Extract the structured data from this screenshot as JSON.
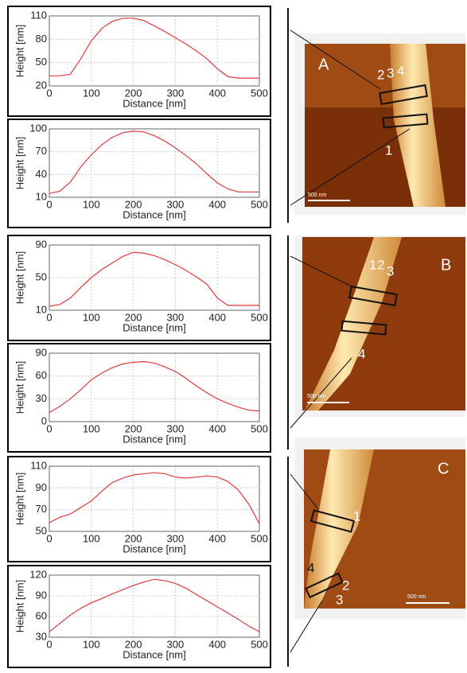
{
  "chart_data": [
    {
      "type": "line",
      "x_label": "Distance [nm]",
      "y_label": "Height [nm]",
      "xlim": [
        0,
        500
      ],
      "ylim": [
        20,
        110
      ],
      "xticks": [
        0,
        100,
        200,
        300,
        400,
        500
      ],
      "yticks": [
        20,
        50,
        80,
        110
      ],
      "grid": true,
      "x": [
        0,
        25,
        50,
        75,
        100,
        125,
        150,
        175,
        200,
        225,
        250,
        275,
        300,
        325,
        350,
        375,
        400,
        425,
        450,
        475,
        500
      ],
      "series": [
        {
          "color": "#e03a3a",
          "values": [
            33,
            33,
            35,
            55,
            78,
            94,
            103,
            107,
            107,
            104,
            97,
            90,
            82,
            74,
            65,
            55,
            42,
            32,
            30,
            30,
            30
          ]
        }
      ]
    },
    {
      "type": "line",
      "x_label": "Distance [nm]",
      "y_label": "Height [nm]",
      "xlim": [
        0,
        500
      ],
      "ylim": [
        10,
        100
      ],
      "xticks": [
        0,
        100,
        200,
        300,
        400,
        500
      ],
      "yticks": [
        10,
        40,
        70,
        100
      ],
      "grid": true,
      "x": [
        0,
        25,
        50,
        75,
        100,
        125,
        150,
        175,
        200,
        225,
        250,
        275,
        300,
        325,
        350,
        375,
        400,
        425,
        450,
        475,
        500
      ],
      "series": [
        {
          "color": "#e03a3a",
          "values": [
            15,
            18,
            30,
            50,
            66,
            79,
            89,
            95,
            97,
            96,
            91,
            84,
            75,
            65,
            54,
            41,
            29,
            21,
            17,
            17,
            17
          ]
        }
      ]
    },
    {
      "type": "line",
      "x_label": "Distance [nm]",
      "y_label": "Height [nm]",
      "xlim": [
        0,
        500
      ],
      "ylim": [
        10,
        90
      ],
      "xticks": [
        0,
        100,
        200,
        300,
        400,
        500
      ],
      "yticks": [
        10,
        50,
        90
      ],
      "grid": true,
      "x": [
        0,
        25,
        50,
        75,
        100,
        125,
        150,
        175,
        200,
        225,
        250,
        275,
        300,
        325,
        350,
        375,
        400,
        425,
        450,
        475,
        500
      ],
      "series": [
        {
          "color": "#e03a3a",
          "values": [
            15,
            17,
            25,
            38,
            50,
            60,
            68,
            76,
            81,
            80,
            77,
            72,
            66,
            59,
            51,
            42,
            25,
            16,
            16,
            16,
            16
          ]
        }
      ]
    },
    {
      "type": "line",
      "x_label": "Distance [nm]",
      "y_label": "Height [nm]",
      "xlim": [
        0,
        500
      ],
      "ylim": [
        0,
        90
      ],
      "xticks": [
        0,
        100,
        200,
        300,
        400,
        500
      ],
      "yticks": [
        0,
        30,
        60,
        90
      ],
      "grid": true,
      "x": [
        0,
        25,
        50,
        75,
        100,
        125,
        150,
        175,
        200,
        225,
        250,
        275,
        300,
        325,
        350,
        375,
        400,
        425,
        450,
        475,
        500
      ],
      "series": [
        {
          "color": "#e03a3a",
          "values": [
            12,
            20,
            30,
            42,
            55,
            64,
            71,
            76,
            78,
            79,
            77,
            72,
            66,
            57,
            47,
            38,
            30,
            24,
            19,
            15,
            14
          ]
        }
      ]
    },
    {
      "type": "line",
      "x_label": "Distance [nm]",
      "y_label": "Height [nm]",
      "xlim": [
        0,
        500
      ],
      "ylim": [
        50,
        110
      ],
      "xticks": [
        0,
        100,
        200,
        300,
        400,
        500
      ],
      "yticks": [
        50,
        70,
        90,
        110
      ],
      "grid": true,
      "x": [
        0,
        25,
        50,
        75,
        100,
        125,
        150,
        175,
        200,
        225,
        250,
        275,
        300,
        325,
        350,
        375,
        400,
        425,
        450,
        475,
        500
      ],
      "series": [
        {
          "color": "#e03a3a",
          "values": [
            58,
            63,
            66,
            72,
            78,
            87,
            95,
            99,
            102,
            103,
            104,
            103,
            100,
            99,
            100,
            101,
            100,
            96,
            88,
            75,
            57
          ]
        }
      ]
    },
    {
      "type": "line",
      "x_label": "Distance [nm]",
      "y_label": "Height [nm]",
      "xlim": [
        0,
        500
      ],
      "ylim": [
        30,
        120
      ],
      "xticks": [
        0,
        100,
        200,
        300,
        400,
        500
      ],
      "yticks": [
        30,
        60,
        90,
        120
      ],
      "grid": true,
      "x": [
        0,
        25,
        50,
        75,
        100,
        125,
        150,
        175,
        200,
        225,
        250,
        275,
        300,
        325,
        350,
        375,
        400,
        425,
        450,
        475,
        500
      ],
      "series": [
        {
          "color": "#e03a3a",
          "values": [
            38,
            50,
            62,
            72,
            80,
            86,
            93,
            99,
            105,
            110,
            114,
            112,
            108,
            101,
            92,
            83,
            74,
            65,
            56,
            46,
            38
          ]
        }
      ]
    }
  ],
  "panels": [
    {
      "label": "A",
      "markers": [
        "2",
        "3",
        "4",
        "1"
      ],
      "scale_bar": "500 nm"
    },
    {
      "label": "B",
      "markers": [
        "1",
        "2",
        "3",
        "4"
      ],
      "scale_bar": "500 nm"
    },
    {
      "label": "C",
      "markers": [
        "1",
        "4",
        "2",
        "3"
      ],
      "scale_bar": "500 nm"
    }
  ]
}
